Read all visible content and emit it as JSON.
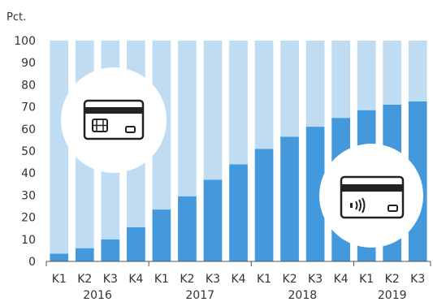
{
  "chart_data": {
    "type": "bar",
    "stacked": true,
    "ylabel": "Pct.",
    "ylim": [
      0,
      100
    ],
    "yticks": [
      0,
      10,
      20,
      30,
      40,
      50,
      60,
      70,
      80,
      90,
      100
    ],
    "categories": [
      "K1",
      "K2",
      "K3",
      "K4",
      "K1",
      "K2",
      "K3",
      "K4",
      "K1",
      "K2",
      "K3",
      "K4",
      "K1",
      "K2",
      "K3"
    ],
    "year_groups": [
      {
        "label": "2016",
        "count": 4
      },
      {
        "label": "2017",
        "count": 4
      },
      {
        "label": "2018",
        "count": 4
      },
      {
        "label": "2019",
        "count": 3
      }
    ],
    "series": [
      {
        "values": [
          3.5,
          6,
          10,
          15.5,
          23.5,
          29.5,
          37,
          44,
          51,
          56.5,
          61,
          65,
          68.5,
          71,
          72.5
        ],
        "color": "#4499dd"
      },
      {
        "values": [
          96.5,
          94,
          90,
          84.5,
          76.5,
          70.5,
          63,
          56,
          49,
          43.5,
          39,
          35,
          31.5,
          29,
          27.5
        ],
        "color": "#bfdcf3"
      }
    ],
    "icons": [
      "chip-card-icon",
      "contactless-card-icon"
    ],
    "grid": false
  }
}
